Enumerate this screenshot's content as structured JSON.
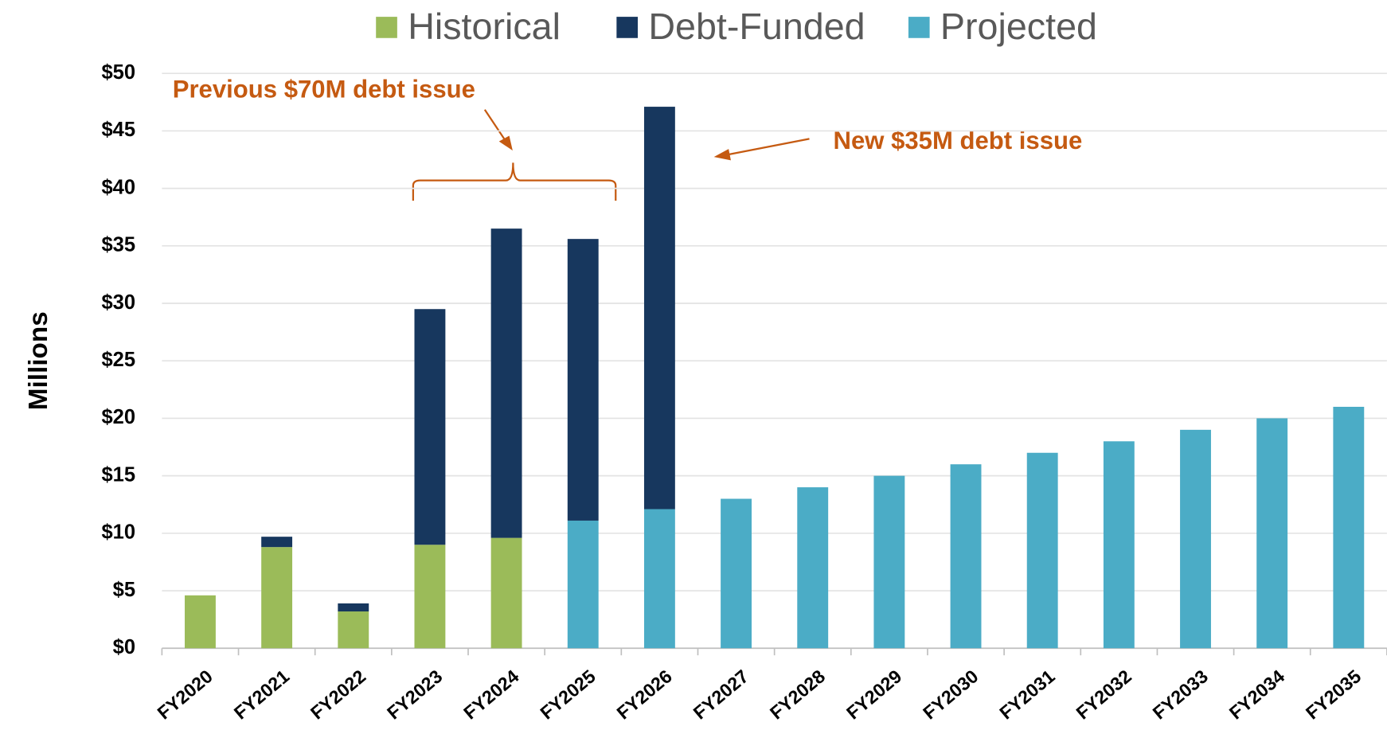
{
  "chart_data": {
    "type": "stacked_bar",
    "y_label": "Millions",
    "annotations": [
      "Previous $70M debt issue",
      "New $35M debt issue"
    ],
    "categories": [
      "FY2020",
      "FY2021",
      "FY2022",
      "FY2023",
      "FY2024",
      "FY2025",
      "FY2026",
      "FY2027",
      "FY2028",
      "FY2029",
      "FY2030",
      "FY2031",
      "FY2032",
      "FY2033",
      "FY2034",
      "FY2035"
    ],
    "series": [
      {
        "name": "Historical",
        "color": "#9bbb59",
        "values": [
          4.6,
          8.8,
          3.2,
          9.0,
          9.6,
          null,
          null,
          null,
          null,
          null,
          null,
          null,
          null,
          null,
          null,
          null
        ]
      },
      {
        "name": "Debt-Funded",
        "color": "#17375e",
        "values": [
          null,
          0.9,
          0.7,
          20.5,
          26.9,
          24.5,
          35.0,
          null,
          null,
          null,
          null,
          null,
          null,
          null,
          null,
          null
        ]
      },
      {
        "name": "Projected",
        "color": "#4bacc6",
        "values": [
          null,
          null,
          null,
          null,
          null,
          11.1,
          12.1,
          13,
          14,
          15,
          16,
          17,
          18,
          19,
          20,
          21
        ]
      }
    ],
    "ylim": [
      0,
      50
    ],
    "yticks": [
      {
        "value": 0,
        "label": "$0"
      },
      {
        "value": 5,
        "label": "$5"
      },
      {
        "value": 10,
        "label": "$10"
      },
      {
        "value": 15,
        "label": "$15"
      },
      {
        "value": 20,
        "label": "$20"
      },
      {
        "value": 25,
        "label": "$25"
      },
      {
        "value": 30,
        "label": "$30"
      },
      {
        "value": 35,
        "label": "$35"
      },
      {
        "value": 40,
        "label": "$40"
      },
      {
        "value": 45,
        "label": "$45"
      },
      {
        "value": 50,
        "label": "$50"
      }
    ],
    "grid": true
  }
}
